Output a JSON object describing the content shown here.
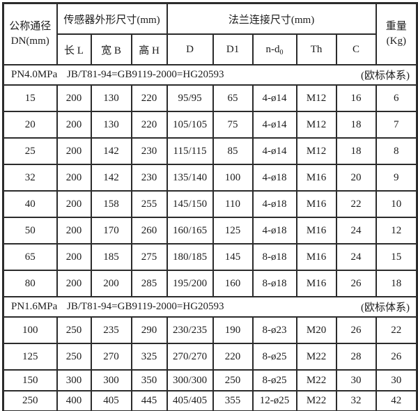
{
  "table": {
    "header": {
      "dn_line1": "公称通径",
      "dn_line2": "DN(mm)",
      "sensor_group": "传感器外形尺寸(mm)",
      "flange_group": "法兰连接尺寸(mm)",
      "weight_line1": "重量",
      "weight_line2": "(Kg)",
      "sub": {
        "l": "长 L",
        "b": "宽 B",
        "h": "高 H",
        "d": "D",
        "d1": "D1",
        "nd_base": "n-d",
        "nd_sub": "0",
        "th": "Th",
        "c": "C"
      }
    },
    "sections": [
      {
        "pressure": "PN4.0MPa",
        "standard": "JB/T81-94=GB9119-2000=HG20593",
        "note": "(欧标体系)",
        "rows": [
          [
            "15",
            "200",
            "130",
            "220",
            "95/95",
            "65",
            "4-ø14",
            "M12",
            "16",
            "6"
          ],
          [
            "20",
            "200",
            "130",
            "220",
            "105/105",
            "75",
            "4-ø14",
            "M12",
            "18",
            "7"
          ],
          [
            "25",
            "200",
            "142",
            "230",
            "115/115",
            "85",
            "4-ø14",
            "M12",
            "18",
            "8"
          ],
          [
            "32",
            "200",
            "142",
            "230",
            "135/140",
            "100",
            "4-ø18",
            "M16",
            "20",
            "9"
          ],
          [
            "40",
            "200",
            "158",
            "255",
            "145/150",
            "110",
            "4-ø18",
            "M16",
            "22",
            "10"
          ],
          [
            "50",
            "200",
            "170",
            "260",
            "160/165",
            "125",
            "4-ø18",
            "M16",
            "24",
            "12"
          ],
          [
            "65",
            "200",
            "185",
            "275",
            "180/185",
            "145",
            "8-ø18",
            "M16",
            "24",
            "15"
          ],
          [
            "80",
            "200",
            "200",
            "285",
            "195/200",
            "160",
            "8-ø18",
            "M16",
            "26",
            "18"
          ]
        ]
      },
      {
        "pressure": "PN1.6MPa",
        "standard": "JB/T81-94=GB9119-2000=HG20593",
        "note": "(欧标体系)",
        "rows": [
          [
            "100",
            "250",
            "235",
            "290",
            "230/235",
            "190",
            "8-ø23",
            "M20",
            "26",
            "22"
          ],
          [
            "125",
            "250",
            "270",
            "325",
            "270/270",
            "220",
            "8-ø25",
            "M22",
            "28",
            "26"
          ],
          [
            "150",
            "300",
            "300",
            "350",
            "300/300",
            "250",
            "8-ø25",
            "M22",
            "30",
            "30"
          ],
          [
            "250",
            "400",
            "405",
            "445",
            "405/405",
            "355",
            "12-ø25",
            "M22",
            "32",
            "42"
          ]
        ]
      }
    ]
  }
}
